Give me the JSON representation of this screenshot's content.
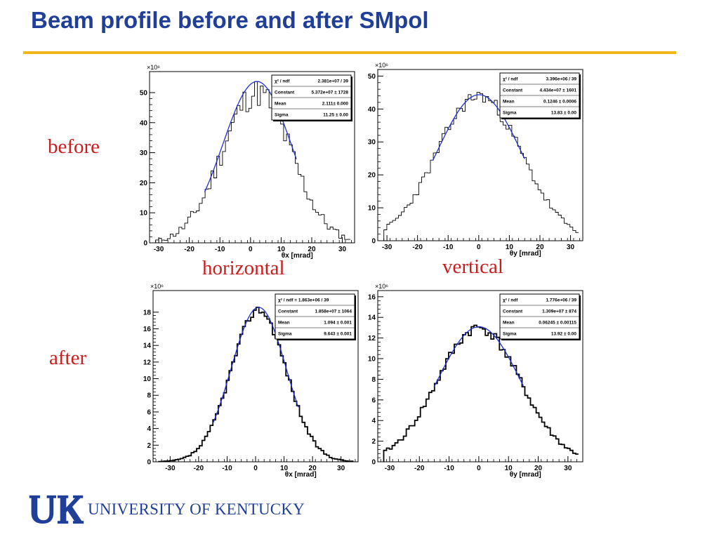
{
  "title": "Beam profile before and after SMpol",
  "row_labels": {
    "before": "before",
    "after": "after"
  },
  "col_labels": {
    "horizontal": "horizontal",
    "vertical": "vertical"
  },
  "logo": {
    "text": "UNIVERSITY OF KENTUCKY",
    "mark": "UK"
  },
  "colors": {
    "title": "#1f3f98",
    "rule": "#f2b51c",
    "labels": "#c81e1e",
    "fit": "#1f2fd0",
    "hist": "#000000"
  },
  "chart_data": [
    {
      "id": "before-horizontal",
      "type": "histogram",
      "exponent": "×10⁶",
      "xlabel": "θx [mrad]",
      "xticks": [
        -30,
        -20,
        -10,
        0,
        10,
        20,
        30
      ],
      "yticks": [
        0,
        10,
        20,
        30,
        40,
        50
      ],
      "xlim": [
        -33,
        34
      ],
      "ylim": [
        0,
        57
      ],
      "bold": false,
      "stats": [
        [
          "χ² / ndf",
          "2.381e+07 / 39"
        ],
        [
          "Constant",
          "5.372e+07 ± 1728"
        ],
        [
          "Mean",
          "2.111± 0.000"
        ],
        [
          "Sigma",
          "11.25 ± 0.00"
        ]
      ],
      "fit": {
        "amp": 53.72,
        "mean": 2.111,
        "sigma": 11.25,
        "range": [
          -15,
          15
        ]
      },
      "hist": {
        "amp": 50,
        "mean": 2,
        "sigma": 11.25,
        "noise": 5,
        "width": 0.95,
        "seed": 11
      }
    },
    {
      "id": "before-vertical",
      "type": "histogram",
      "exponent": "×10⁶",
      "xlabel": "θy [mrad]",
      "xticks": [
        -30,
        -20,
        -10,
        0,
        10,
        20,
        30
      ],
      "yticks": [
        0,
        10,
        20,
        30,
        40,
        50
      ],
      "xlim": [
        -33,
        34
      ],
      "ylim": [
        0,
        52
      ],
      "bold": false,
      "stats": [
        [
          "χ² / ndf",
          "3.396e+06 / 39"
        ],
        [
          "Constant",
          "4.434e+07 ± 1601"
        ],
        [
          "Mean",
          "0.1246 ± 0.0006"
        ],
        [
          "Sigma",
          "13.83 ± 0.00"
        ]
      ],
      "fit": {
        "amp": 44.34,
        "mean": 0.1246,
        "sigma": 13.83,
        "range": [
          -15,
          15
        ]
      },
      "hist": {
        "amp": 44,
        "mean": 0.1,
        "sigma": 13.83,
        "noise": 2.2,
        "width": 0.95,
        "seed": 23
      }
    },
    {
      "id": "after-horizontal",
      "type": "histogram",
      "exponent": "×10⁶",
      "xlabel": "θx [mrad]",
      "xticks": [
        -30,
        -20,
        -10,
        0,
        10,
        20,
        30
      ],
      "yticks": [
        0,
        2,
        4,
        6,
        8,
        10,
        12,
        14,
        16,
        18
      ],
      "xlim": [
        -36,
        36
      ],
      "ylim": [
        0,
        20.6
      ],
      "bold": true,
      "stats": [
        [
          "χ² / ndf = 1.863e+06 / 39",
          ""
        ],
        [
          "Constant",
          "1.858e+07 ± 1064"
        ],
        [
          "Mean",
          "1.094 ± 0.001"
        ],
        [
          "Sigma",
          "9.643 ± 0.001"
        ]
      ],
      "fit": {
        "amp": 18.58,
        "mean": 1.094,
        "sigma": 9.643,
        "range": [
          -15,
          15
        ]
      },
      "hist": {
        "amp": 18.3,
        "mean": 1.1,
        "sigma": 9.643,
        "noise": 0.5,
        "width": 0.95,
        "seed": 37
      }
    },
    {
      "id": "after-vertical",
      "type": "histogram",
      "exponent": "×10⁶",
      "xlabel": "θy [mrad]",
      "xticks": [
        -30,
        -20,
        -10,
        0,
        10,
        20,
        30
      ],
      "yticks": [
        0,
        2,
        4,
        6,
        8,
        10,
        12,
        14,
        16
      ],
      "xlim": [
        -34,
        35
      ],
      "ylim": [
        0,
        16.6
      ],
      "bold": true,
      "stats": [
        [
          "χ² / ndf",
          "1.776e+06 / 39"
        ],
        [
          "Constant",
          "1.309e+07 ± 874"
        ],
        [
          "Mean",
          "0.06245 ± 0.00115"
        ],
        [
          "Sigma",
          "13.92 ± 0.00"
        ]
      ],
      "fit": {
        "amp": 13.09,
        "mean": 0.06245,
        "sigma": 13.92,
        "range": [
          -15,
          15
        ]
      },
      "hist": {
        "amp": 13,
        "mean": 0,
        "sigma": 13.92,
        "noise": 0.55,
        "width": 0.95,
        "seed": 41
      }
    }
  ]
}
